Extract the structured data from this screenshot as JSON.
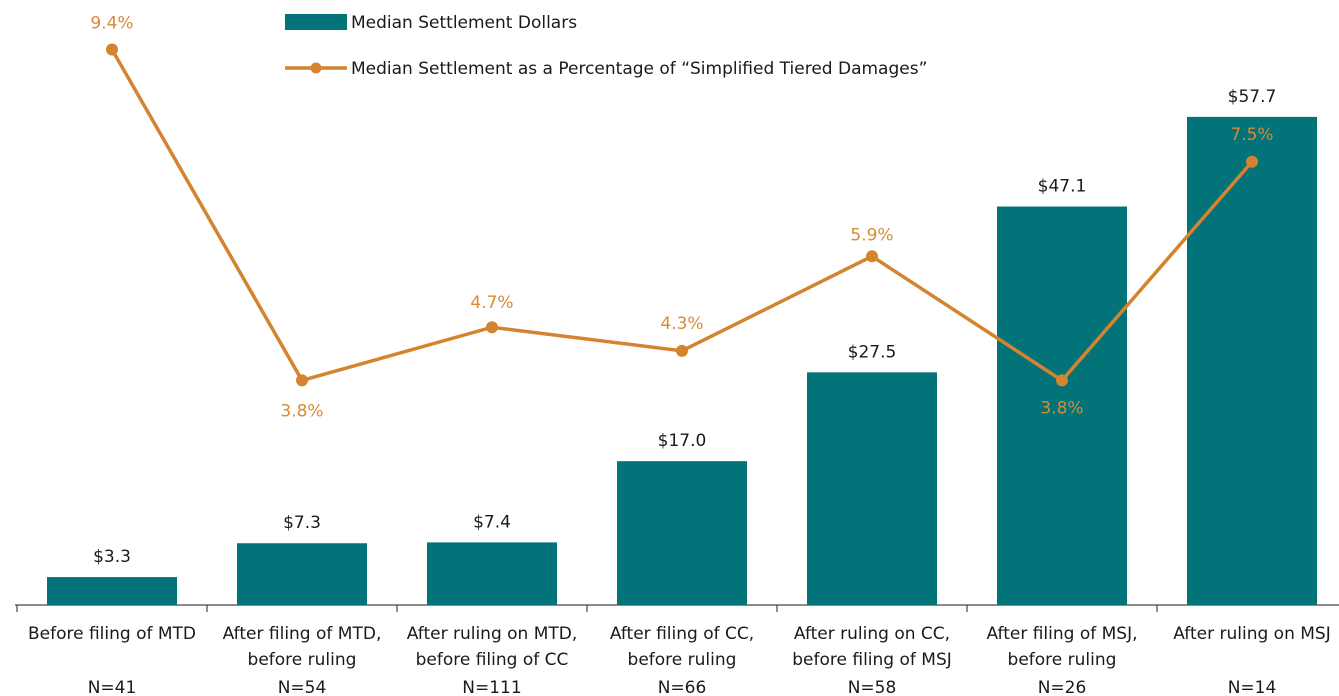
{
  "chart_data": {
    "type": "bar",
    "categories": [
      [
        "Before filing of MTD"
      ],
      [
        "After filing of MTD,",
        "before ruling"
      ],
      [
        "After ruling on MTD,",
        "before filing of CC"
      ],
      [
        "After filing of CC,",
        "before ruling"
      ],
      [
        "After ruling on CC,",
        "before filing of MSJ"
      ],
      [
        "After filing of MSJ,",
        "before ruling"
      ],
      [
        "After ruling on MSJ"
      ]
    ],
    "sample_sizes": [
      "N=41",
      "N=54",
      "N=111",
      "N=66",
      "N=58",
      "N=26",
      "N=14"
    ],
    "series": [
      {
        "name": "Median Settlement Dollars",
        "type": "bar",
        "color": "#017379",
        "values": [
          3.3,
          7.3,
          7.4,
          17.0,
          27.5,
          47.1,
          57.7
        ],
        "value_labels": [
          "$3.3",
          "$7.3",
          "$7.4",
          "$17.0",
          "$27.5",
          "$47.1",
          "$57.7"
        ]
      },
      {
        "name": "Median Settlement as a Percentage of “Simplified Tiered Damages”",
        "type": "line",
        "axis": "y2",
        "color": "#d4842e",
        "values": [
          9.4,
          3.8,
          4.7,
          4.3,
          5.9,
          3.8,
          7.5
        ],
        "value_labels": [
          "9.4%",
          "3.8%",
          "4.7%",
          "4.3%",
          "5.9%",
          "3.8%",
          "7.5%"
        ]
      }
    ]
  }
}
